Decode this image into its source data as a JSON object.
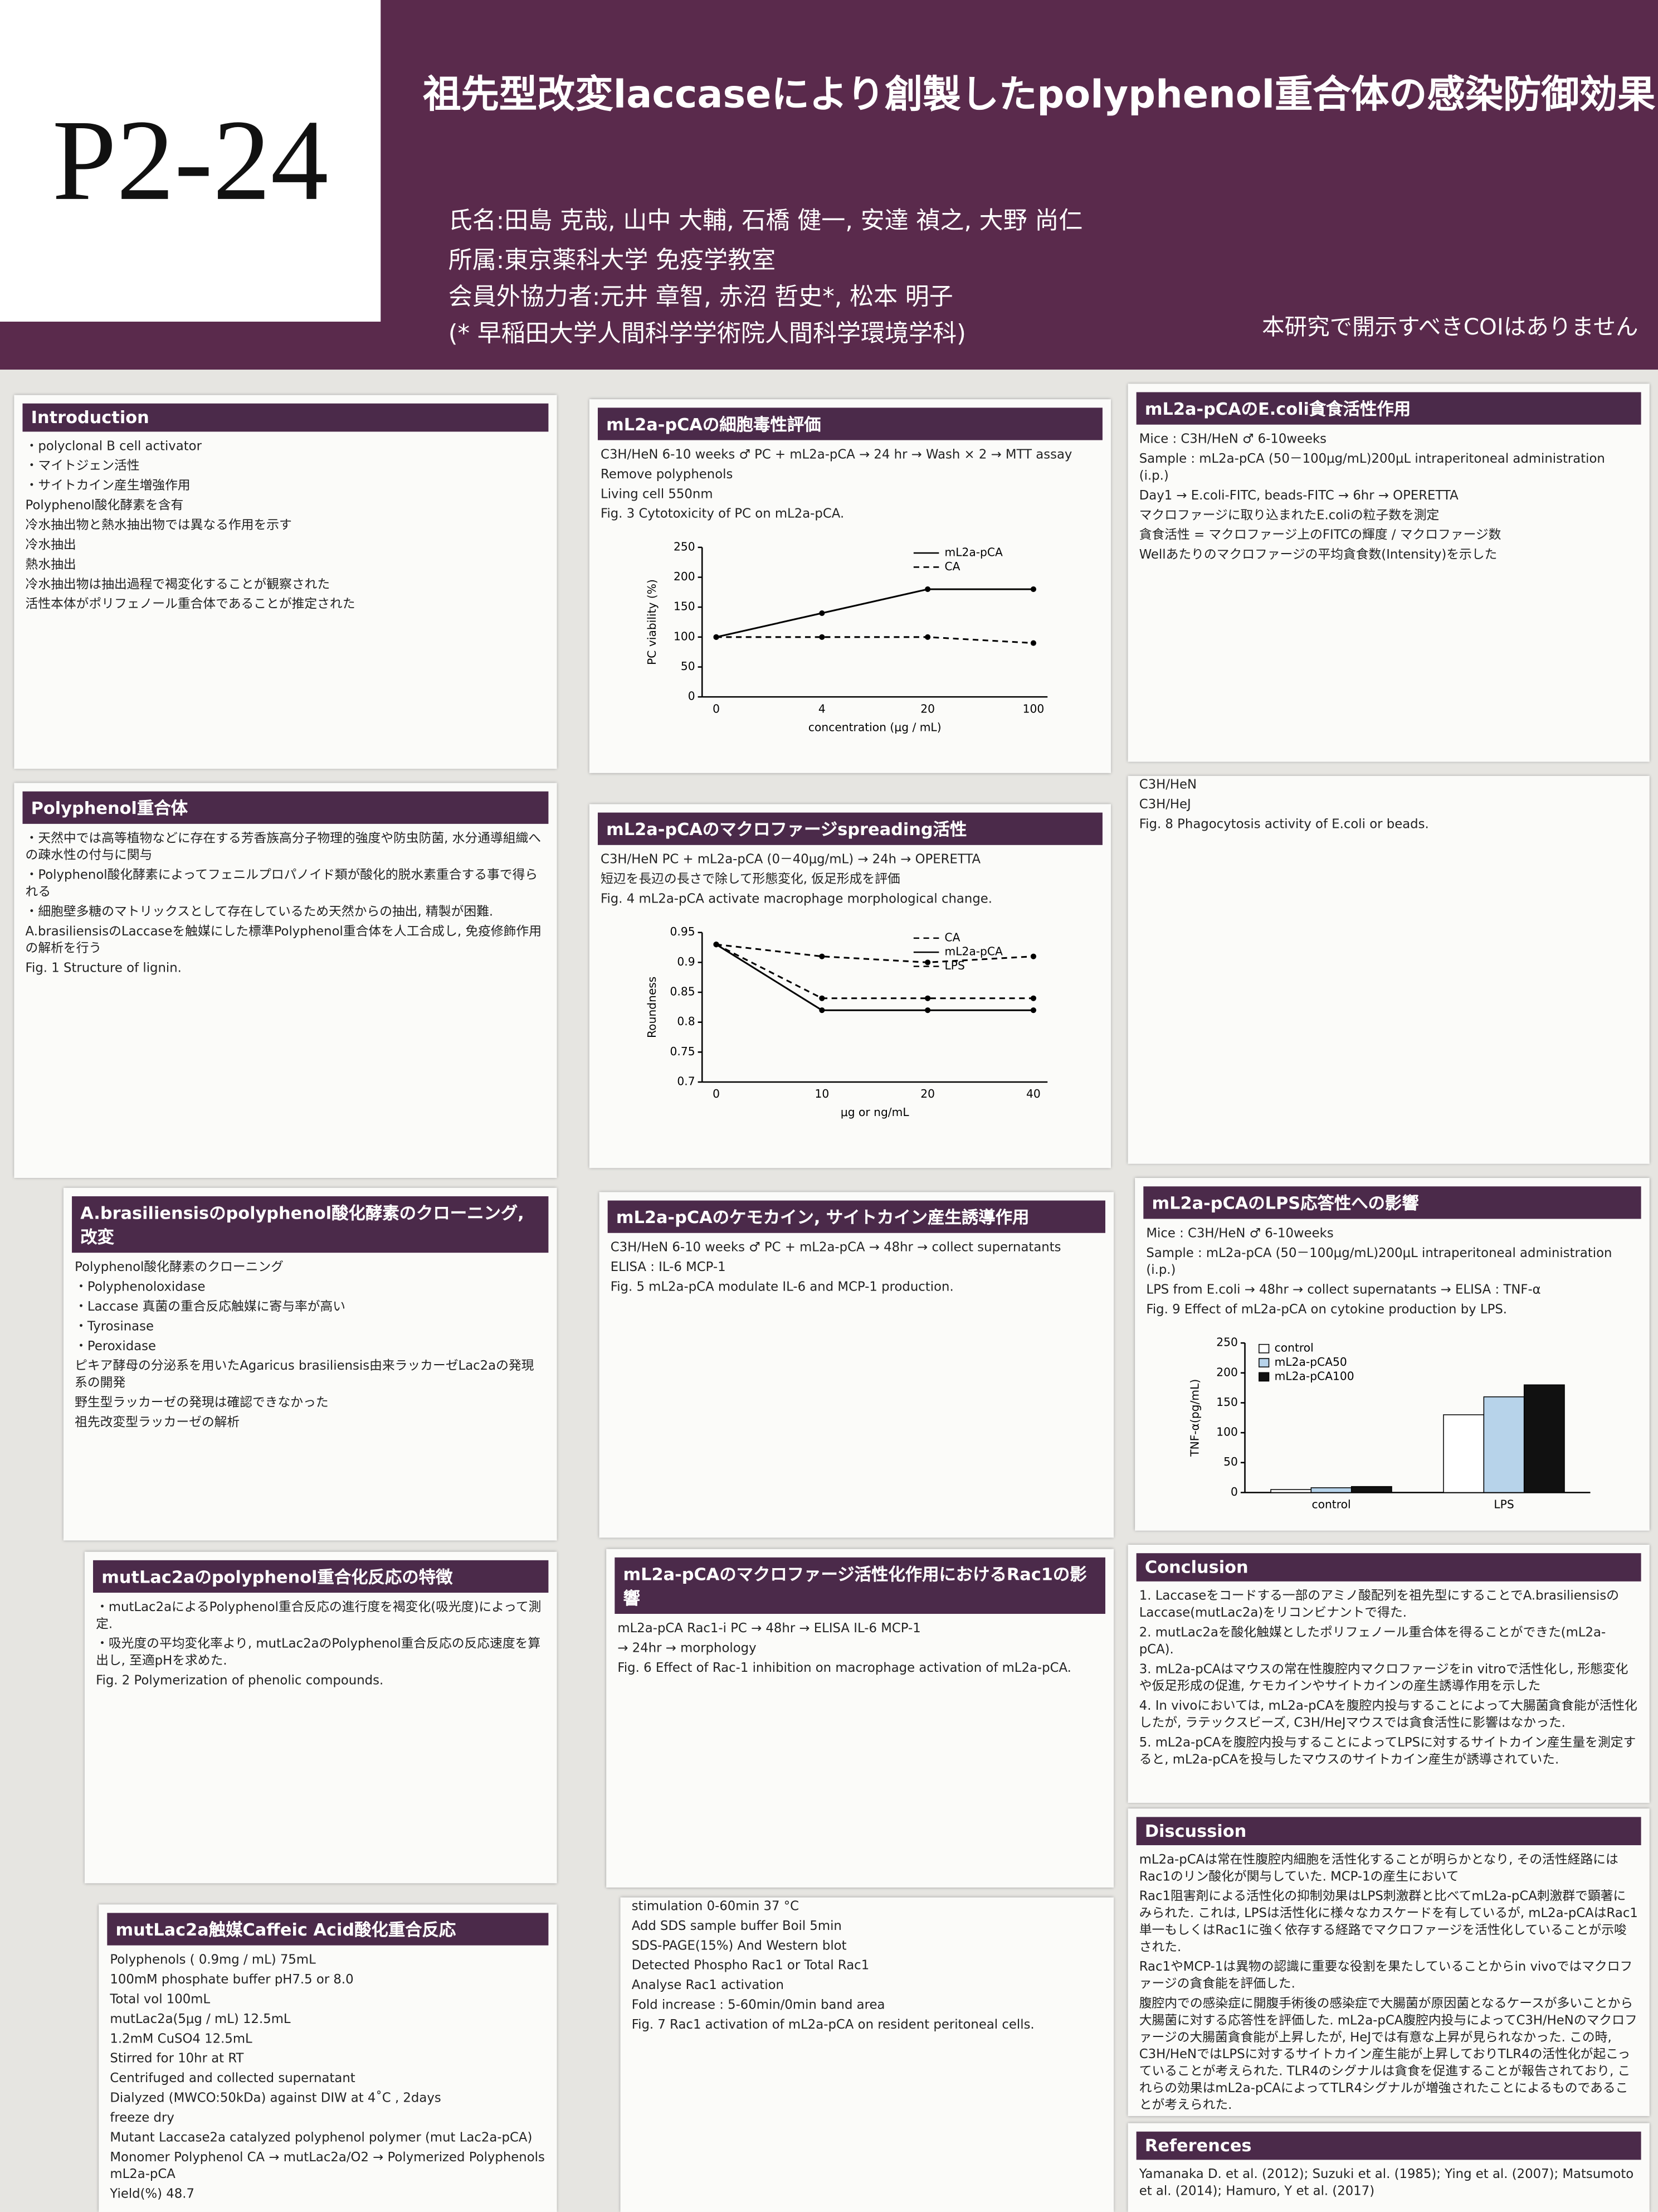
{
  "header": {
    "code": "P2-24",
    "title": "祖先型改変laccaseにより創製したpolyphenol重合体の感染防御効果",
    "authors": [
      "氏名:田島 克哉, 山中 大輔, 石橋 健一, 安達 禎之, 大野 尚仁",
      "所属:東京薬科大学 免疫学教室",
      "会員外協力者:元井 章智, 赤沼 哲史*, 松本 明子",
      "(* 早稲田大学人間科学学術院人間科学環境学科)"
    ],
    "coi": "本研究で開示すべきCOIはありません"
  },
  "panels": [
    {
      "title": "Introduction",
      "lines": [
        "・polyclonal B cell activator",
        "・マイトジェン活性",
        "・サイトカイン産生増強作用",
        "Polyphenol酸化酵素を含有",
        "冷水抽出物と熱水抽出物では異なる作用を示す",
        "冷水抽出",
        "熱水抽出",
        "冷水抽出物は抽出過程で褐変化することが観察された",
        "活性本体がポリフェノール重合体であることが推定された"
      ]
    },
    {
      "title": "Polyphenol重合体",
      "lines": [
        "・天然中では高等植物などに存在する芳香族高分子物理的強度や防虫防菌, 水分通導組織への疎水性の付与に関与",
        "・Polyphenol酸化酵素によってフェニルプロパノイド類が酸化的脱水素重合する事で得られる",
        "・細胞壁多糖のマトリックスとして存在しているため天然からの抽出, 精製が困難.",
        "A.brasiliensisのLaccaseを触媒にした標準Polyphenol重合体を人工合成し, 免疫修飾作用の解析を行う",
        "Fig. 1 Structure of lignin."
      ]
    },
    {
      "title": "A.brasiliensisのpolyphenol酸化酵素のクローニング, 改変",
      "lines": [
        "Polyphenol酸化酵素のクローニング",
        "・Polyphenoloxidase",
        "・Laccase 真菌の重合反応触媒に寄与率が高い",
        "・Tyrosinase",
        "・Peroxidase",
        "ピキア酵母の分泌系を用いたAgaricus brasiliensis由来ラッカーゼLac2aの発現系の開発",
        "野生型ラッカーゼの発現は確認できなかった",
        "祖先改変型ラッカーゼの解析"
      ]
    },
    {
      "title": "mutLac2aのpolyphenol重合化反応の特徴",
      "lines": [
        "・mutLac2aによるPolyphenol重合反応の進行度を褐変化(吸光度)によって測定.",
        "・吸光度の平均変化率より, mutLac2aのPolyphenol重合反応の反応速度を算出し, 至適pHを求めた.",
        "Fig. 2 Polymerization of phenolic compounds."
      ]
    },
    {
      "title": "mutLac2a触媒Caffeic Acid酸化重合反応",
      "lines": [
        "Polyphenols ( 0.9mg / mL) 75mL",
        "100mM phosphate buffer pH7.5 or 8.0",
        "Total vol 100mL",
        "mutLac2a(5μg / mL) 12.5mL",
        "1.2mM CuSO4 12.5mL",
        "Stirred for 10hr at RT",
        "Centrifuged and collected supernatant",
        "Dialyzed (MWCO:50kDa) against DIW at 4˚C , 2days",
        "freeze dry",
        "Mutant Laccase2a catalyzed polyphenol polymer (mut Lac2a-pCA)",
        "Monomer Polyphenol  CA  →  mutLac2a/O2  →  Polymerized Polyphenols  mL2a-pCA",
        "Yield(%)  48.7"
      ]
    },
    {
      "title": "mL2a-pCAの細胞毒性評価",
      "lines": [
        "C3H/HeN 6-10 weeks ♂ PC  +  mL2a-pCA  →  24 hr  →  Wash × 2  →  MTT assay",
        "Remove polyphenols",
        "Living cell  550nm",
        "Fig. 3 Cytotoxicity of PC on mL2a-pCA."
      ]
    },
    {
      "title": "mL2a-pCAのマクロファージspreading活性",
      "lines": [
        "C3H/HeN PC  +  mL2a-pCA (0－40μg/mL)  →  24h  →  OPERETTA",
        "短辺を長辺の長さで除して形態変化, 仮足形成を評価",
        "Fig. 4 mL2a-pCA activate macrophage morphological change."
      ]
    },
    {
      "title": "mL2a-pCAのケモカイン, サイトカイン産生誘導作用",
      "lines": [
        "C3H/HeN 6-10 weeks ♂ PC  +  mL2a-pCA  →  48hr  →  collect supernatants",
        "ELISA : IL-6 MCP-1",
        "Fig. 5 mL2a-pCA modulate IL-6 and MCP-1 production."
      ]
    },
    {
      "title": "mL2a-pCAのマクロファージ活性化作用におけるRac1の影響",
      "lines": [
        "mL2a-pCA  Rac1-i  PC  →  48hr  →  ELISA IL-6 MCP-1",
        "→  24hr  →  morphology",
        "Fig. 6 Effect of Rac-1 inhibition on macrophage activation of mL2a-pCA."
      ]
    },
    {
      "lines": [
        "stimulation  0-60min  37 °C",
        "Add SDS sample buffer Boil 5min",
        "SDS-PAGE(15%) And Western blot",
        "Detected Phospho Rac1 or Total Rac1",
        "Analyse Rac1 activation",
        "Fold increase : 5-60min/0min band area",
        "Fig. 7 Rac1 activation of mL2a-pCA on resident peritoneal cells."
      ]
    },
    {
      "title": "mL2a-pCAのE.coli貪食活性作用",
      "lines": [
        "Mice : C3H/HeN ♂ 6-10weeks",
        "Sample : mL2a-pCA (50－100μg/mL)200μL intraperitoneal administration (i.p.)",
        "Day1 → E.coli-FITC, beads-FITC → 6hr → OPERETTA",
        "マクロファージに取り込まれたE.coliの粒子数を測定",
        "貪食活性 = マクロファージ上のFITCの輝度 / マクロファージ数",
        "Wellあたりのマクロファージの平均貪食数(Intensity)を示した"
      ]
    },
    {
      "lines": [
        "C3H/HeN",
        "C3H/HeJ",
        "Fig. 8 Phagocytosis activity of E.coli or beads."
      ]
    },
    {
      "title": "mL2a-pCAのLPS応答性への影響",
      "lines": [
        "Mice : C3H/HeN ♂ 6-10weeks",
        "Sample : mL2a-pCA (50－100μg/mL)200μL intraperitoneal administration (i.p.)",
        "LPS from E.coli  →  48hr  →  collect supernatants  →  ELISA : TNF-α",
        "Fig. 9 Effect of mL2a-pCA on cytokine production by LPS."
      ]
    },
    {
      "title": "Conclusion",
      "lines": [
        "1. Laccaseをコードする一部のアミノ酸配列を祖先型にすることでA.brasiliensisのLaccase(mutLac2a)をリコンビナントで得た.",
        "2. mutLac2aを酸化触媒としたポリフェノール重合体を得ることができた(mL2a-pCA).",
        "3. mL2a-pCAはマウスの常在性腹腔内マクロファージをin vitroで活性化し, 形態変化や仮足形成の促進, ケモカインやサイトカインの産生誘導作用を示した",
        "4. In vivoにおいては, mL2a-pCAを腹腔内投与することによって大腸菌貪食能が活性化したが, ラテックスビーズ, C3H/HeJマウスでは貪食活性に影響はなかった.",
        "5. mL2a-pCAを腹腔内投与することによってLPSに対するサイトカイン産生量を測定すると, mL2a-pCAを投与したマウスのサイトカイン産生が誘導されていた."
      ]
    },
    {
      "title": "Discussion",
      "lines": [
        "mL2a-pCAは常在性腹腔内細胞を活性化することが明らかとなり, その活性経路にはRac1のリン酸化が関与していた. MCP-1の産生において",
        "Rac1阻害剤による活性化の抑制効果はLPS刺激群と比べてmL2a-pCA刺激群で顕著にみられた. これは, LPSは活性化に様々なカスケードを有しているが, mL2a-pCAはRac1単一もしくはRac1に強く依存する経路でマクロファージを活性化していることが示唆された.",
        "Rac1やMCP-1は異物の認識に重要な役割を果たしていることからin vivoではマクロファージの貪食能を評価した.",
        "腹腔内での感染症に開腹手術後の感染症で大腸菌が原因菌となるケースが多いことから大腸菌に対する応答性を評価した. mL2a-pCA腹腔内投与によってC3H/HeNのマクロファージの大腸菌貪食能が上昇したが, HeJでは有意な上昇が見られなかった. この時, C3H/HeNではLPSに対するサイトカイン産生能が上昇しておりTLR4の活性化が起こっていることが考えられた. TLR4のシグナルは貪食を促進することが報告されており, これらの効果はmL2a-pCAによってTLR4シグナルが増強されたことによるものであることが考えられた."
      ]
    },
    {
      "title": "References",
      "lines": [
        "Yamanaka D. et al. (2012); Suzuki et al. (1985); Ying et al. (2007); Matsumoto et al. (2014); Hamuro, Y et al. (2017)"
      ]
    }
  ],
  "chart_data": [
    {
      "type": "line",
      "ylabel": "PC viability (%)",
      "xlabel": "concentration (μg / mL)",
      "categories": [
        "0",
        "4",
        "20",
        "100"
      ],
      "ylim": [
        0,
        250
      ],
      "yticks": [
        0,
        50,
        100,
        150,
        200,
        250
      ],
      "series": [
        {
          "name": "mL2a-pCA",
          "color": "#000000",
          "line_style": "solid",
          "values": [
            100,
            140,
            180,
            180
          ]
        },
        {
          "name": "CA",
          "color": "#000000",
          "line_style": "dashed",
          "values": [
            100,
            100,
            100,
            90
          ]
        }
      ]
    },
    {
      "type": "line",
      "ylabel": "Roundness",
      "xlabel": "μg or ng/mL",
      "categories": [
        "0",
        "10",
        "20",
        "40"
      ],
      "ylim": [
        0.7,
        0.95
      ],
      "yticks": [
        0.7,
        0.75,
        0.8,
        0.85,
        0.9,
        0.95
      ],
      "series": [
        {
          "name": "CA",
          "color": "#000000",
          "line_style": "dashed",
          "values": [
            0.93,
            0.91,
            0.9,
            0.91
          ]
        },
        {
          "name": "mL2a-pCA",
          "color": "#000000",
          "line_style": "solid",
          "values": [
            0.93,
            0.82,
            0.82,
            0.82
          ]
        },
        {
          "name": "LPS",
          "color": "#000000",
          "line_style": "dashed",
          "values": [
            0.93,
            0.84,
            0.84,
            0.84
          ]
        }
      ]
    },
    {
      "type": "bar",
      "ylabel": "TNF-α(pg/mL)",
      "categories": [
        "control",
        "LPS"
      ],
      "ylim": [
        0,
        250
      ],
      "yticks": [
        0,
        50,
        100,
        150,
        200,
        250
      ],
      "series": [
        {
          "name": "control",
          "color": "#ffffff",
          "values": [
            5,
            130
          ]
        },
        {
          "name": "mL2a-pCA50",
          "color": "#b7d3ea",
          "values": [
            8,
            160
          ]
        },
        {
          "name": "mL2a-pCA100",
          "color": "#111111",
          "values": [
            10,
            180
          ]
        }
      ]
    }
  ]
}
